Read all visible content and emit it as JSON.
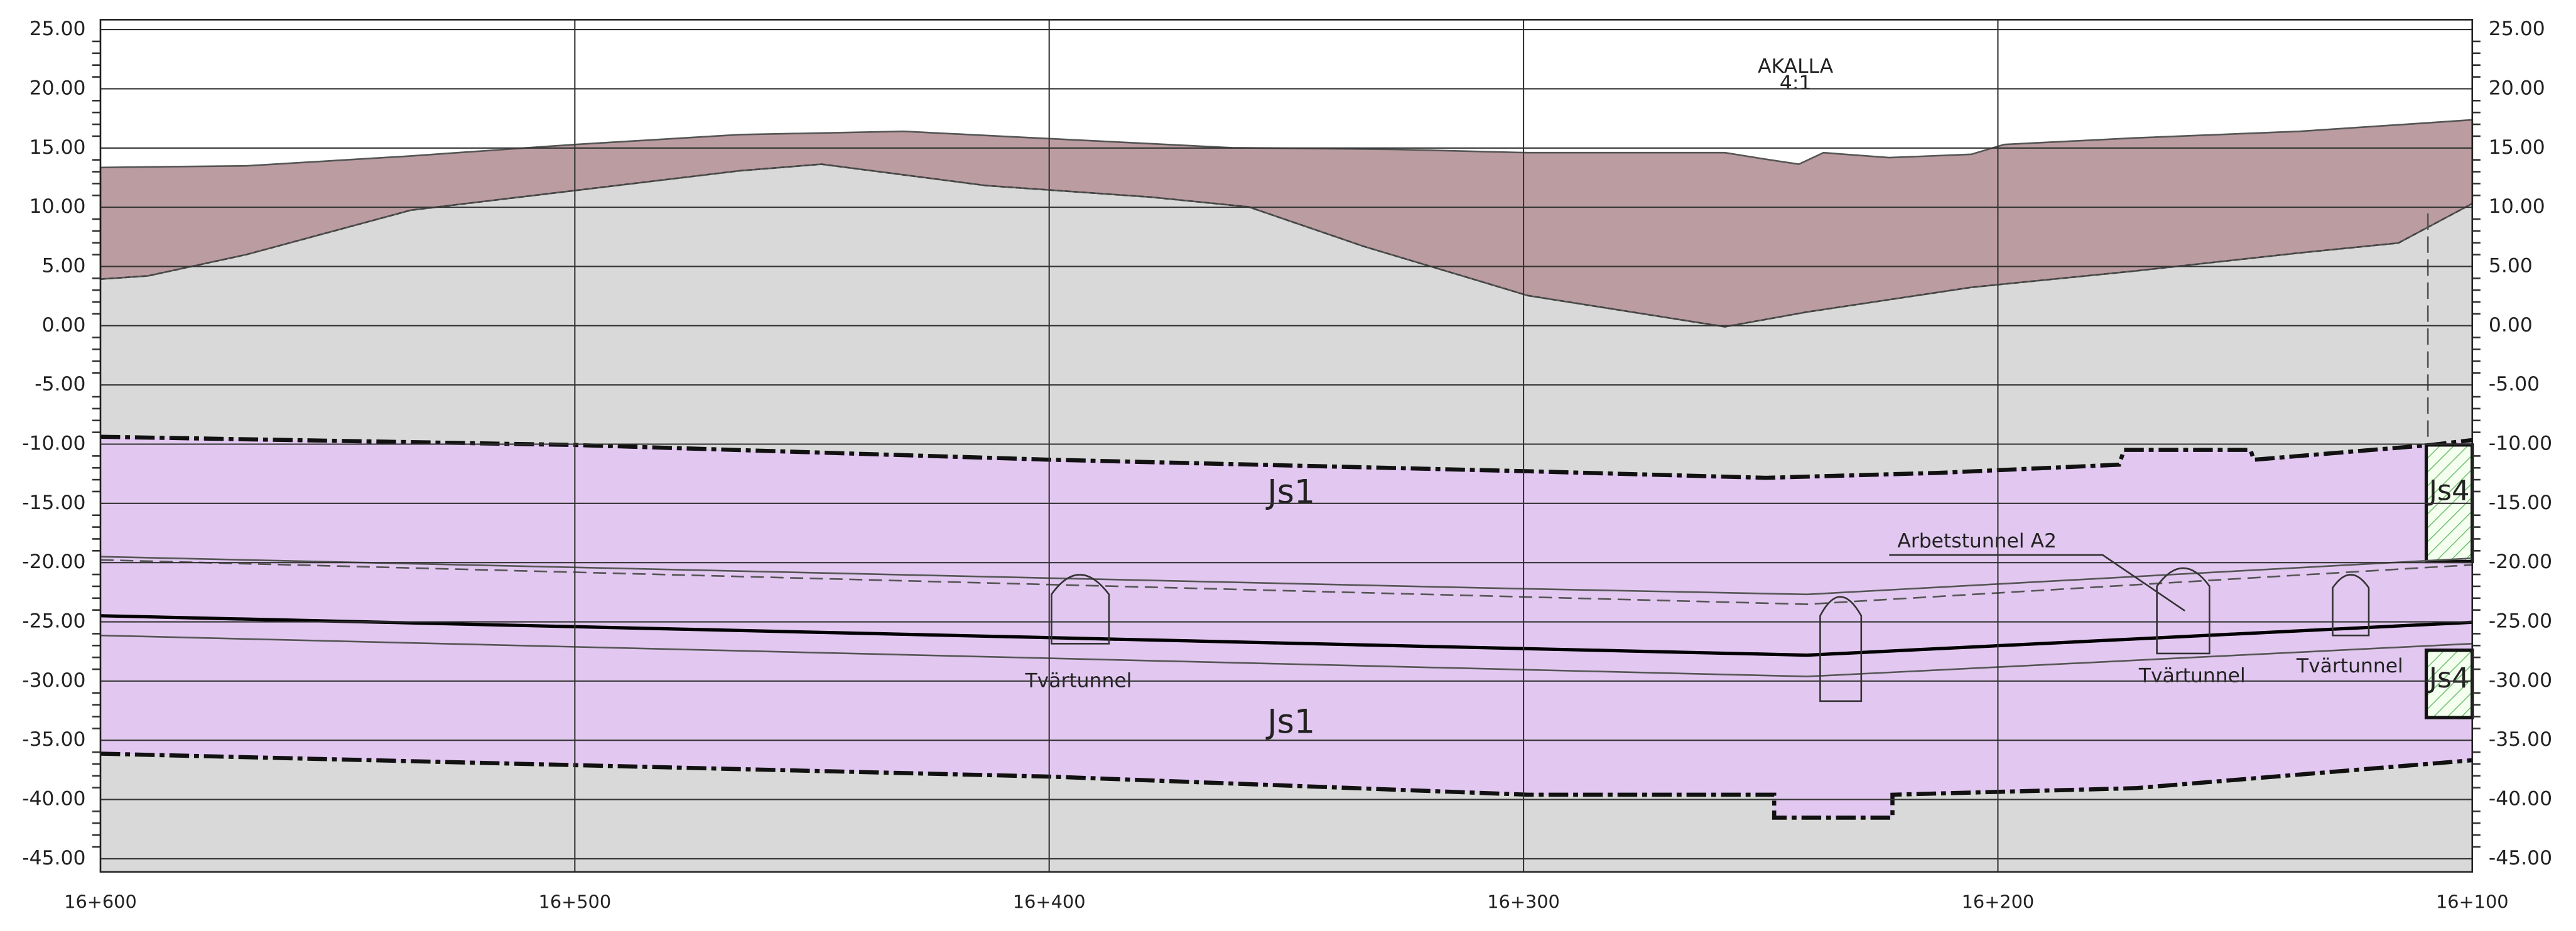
{
  "y_axis": {
    "labels": [
      "25.00",
      "20.00",
      "15.00",
      "10.00",
      "5.00",
      "0.00",
      "-5.00",
      "-10.00",
      "-15.00",
      "-20.00",
      "-25.00",
      "-30.00",
      "-35.00",
      "-40.00",
      "-45.00"
    ]
  },
  "x_axis": {
    "labels": [
      "16+600",
      "16+500",
      "16+400",
      "16+300",
      "16+200",
      "16+100"
    ]
  },
  "header": {
    "station": "AKALLA",
    "scale": "4:1"
  },
  "rock_units": [
    "Js1",
    "Js1",
    "Js4",
    "Js4"
  ],
  "tunnels": {
    "work_tunnel": "Arbetstunnel A2",
    "cross_tunnels": [
      "Tvärtunnel",
      "Tvärtunnel",
      "Tvärtunnel"
    ]
  }
}
